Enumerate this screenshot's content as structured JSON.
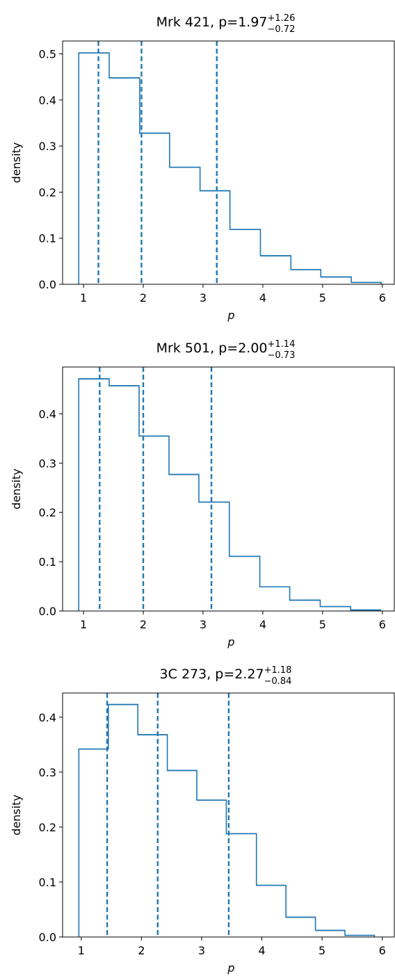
{
  "chart_data": [
    {
      "type": "histogram",
      "title": {
        "prefix": "Mrk 421, p=",
        "value": "1.97",
        "upper": "+1.26",
        "lower": "−0.72"
      },
      "xlabel": "p",
      "ylabel": "density",
      "xlim": [
        0.65,
        6.2
      ],
      "ylim": [
        0,
        0.528
      ],
      "xticks": [
        1,
        2,
        3,
        4,
        5,
        6
      ],
      "yticks": [
        0.0,
        0.1,
        0.2,
        0.3,
        0.4,
        0.5
      ],
      "ytick_labels": [
        "0.0",
        "0.1",
        "0.2",
        "0.3",
        "0.4",
        "0.5"
      ],
      "bin_edges": [
        0.92,
        1.43,
        1.94,
        2.44,
        2.95,
        3.45,
        3.96,
        4.47,
        4.97,
        5.48,
        5.98
      ],
      "values": [
        0.502,
        0.448,
        0.328,
        0.254,
        0.203,
        0.119,
        0.062,
        0.032,
        0.016,
        0.004
      ],
      "vlines": [
        1.25,
        1.97,
        3.23
      ],
      "grid": false
    },
    {
      "type": "histogram",
      "title": {
        "prefix": "Mrk 501, p=",
        "value": "2.00",
        "upper": "+1.14",
        "lower": "−0.73"
      },
      "xlabel": "p",
      "ylabel": "density",
      "xlim": [
        0.65,
        6.2
      ],
      "ylim": [
        0,
        0.495
      ],
      "xticks": [
        1,
        2,
        3,
        4,
        5,
        6
      ],
      "yticks": [
        0.0,
        0.1,
        0.2,
        0.3,
        0.4
      ],
      "ytick_labels": [
        "0.0",
        "0.1",
        "0.2",
        "0.3",
        "0.4"
      ],
      "bin_edges": [
        0.92,
        1.43,
        1.93,
        2.43,
        2.93,
        3.44,
        3.95,
        4.45,
        4.96,
        5.47,
        5.97
      ],
      "values": [
        0.471,
        0.457,
        0.355,
        0.277,
        0.221,
        0.111,
        0.049,
        0.022,
        0.009,
        0.002
      ],
      "vlines": [
        1.27,
        2.0,
        3.14
      ],
      "grid": false
    },
    {
      "type": "histogram",
      "title": {
        "prefix": "3C 273, p=",
        "value": "2.27",
        "upper": "+1.18",
        "lower": "−0.84"
      },
      "xlabel": "p",
      "ylabel": "density",
      "xlim": [
        0.69,
        6.2
      ],
      "ylim": [
        0,
        0.444
      ],
      "xticks": [
        1,
        2,
        3,
        4,
        5,
        6
      ],
      "yticks": [
        0.0,
        0.1,
        0.2,
        0.3,
        0.4
      ],
      "ytick_labels": [
        "0.0",
        "0.1",
        "0.2",
        "0.3",
        "0.4"
      ],
      "bin_edges": [
        0.96,
        1.45,
        1.94,
        2.43,
        2.92,
        3.41,
        3.91,
        4.4,
        4.89,
        5.38,
        5.87
      ],
      "values": [
        0.342,
        0.423,
        0.368,
        0.303,
        0.249,
        0.188,
        0.094,
        0.036,
        0.012,
        0.003
      ],
      "vlines": [
        1.43,
        2.27,
        3.45
      ],
      "grid": false
    }
  ],
  "colors": {
    "series": "#1f77b4",
    "axes": "#000000",
    "background": "#ffffff"
  }
}
